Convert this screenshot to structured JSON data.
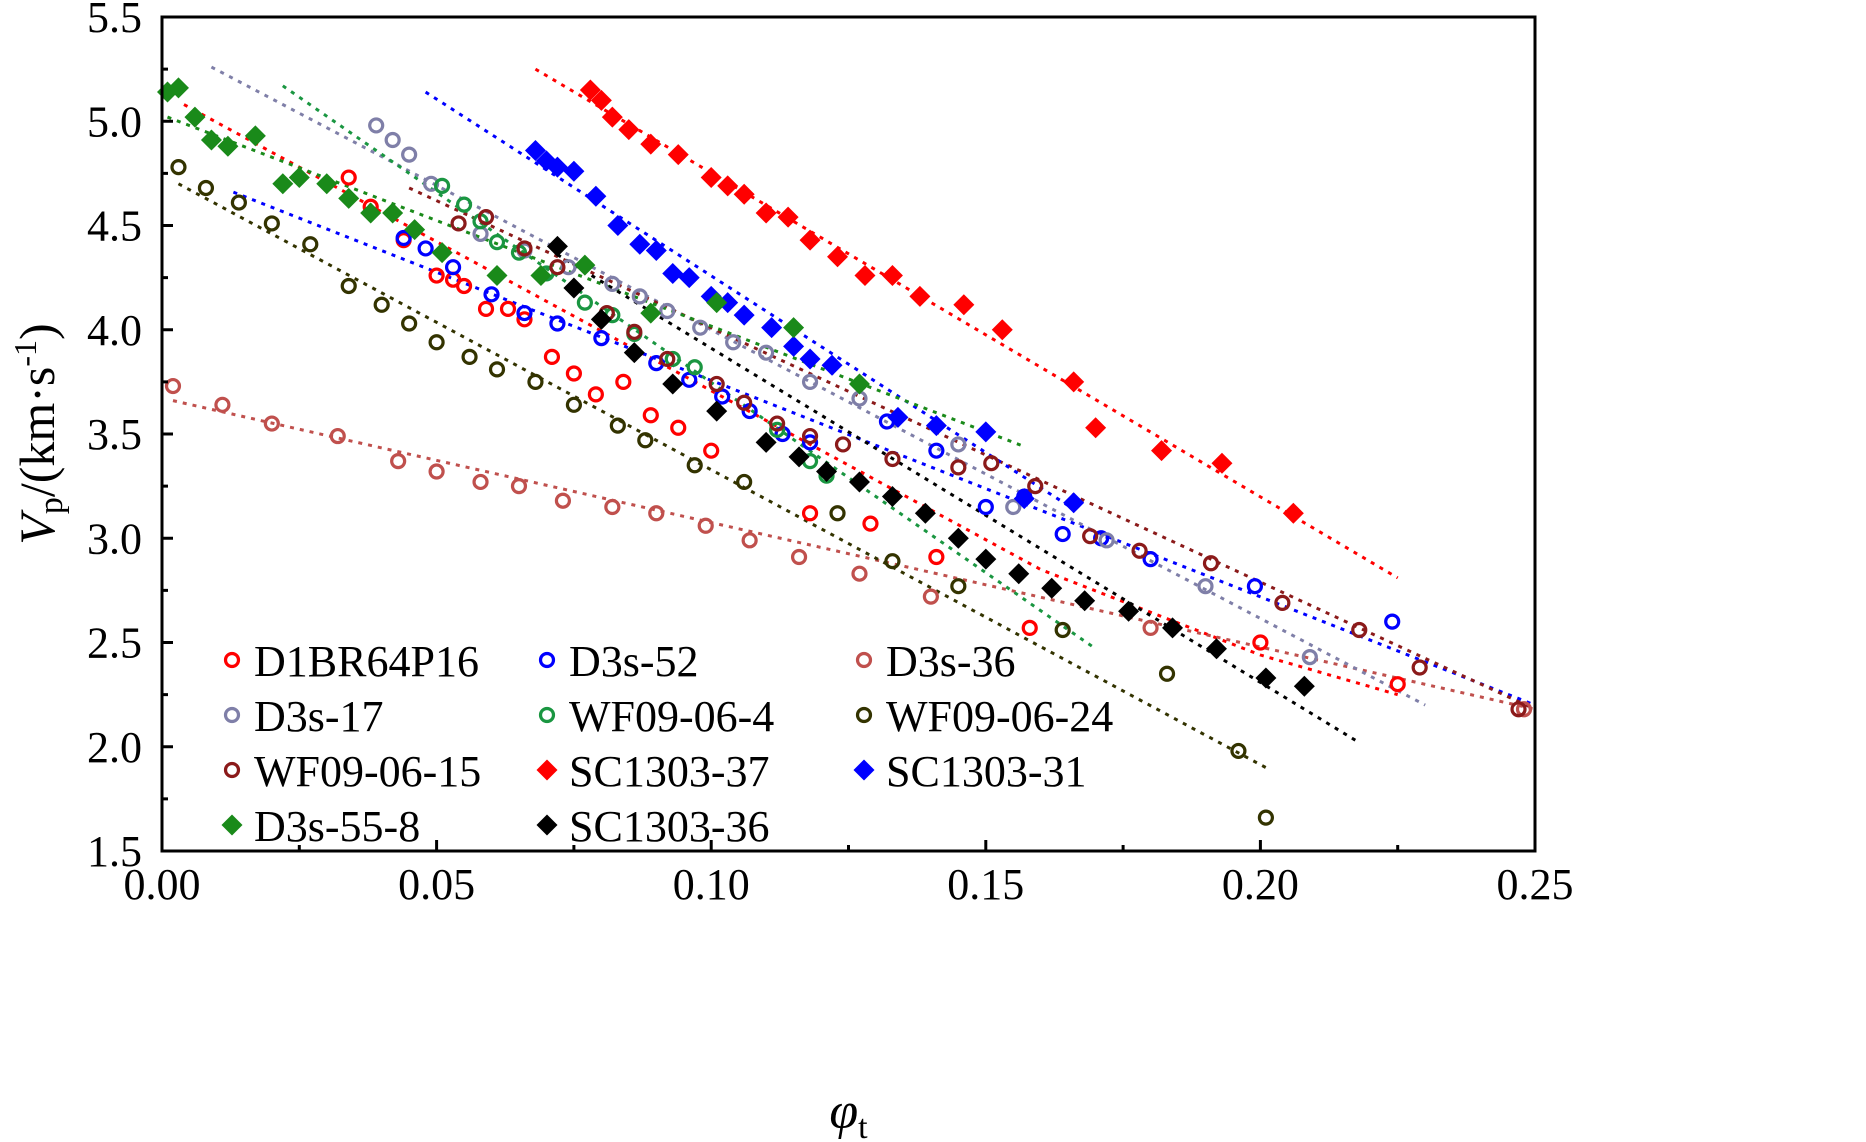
{
  "chart_data": {
    "type": "scatter",
    "title": "",
    "xlabel": {
      "main": "φ",
      "sub": "t"
    },
    "ylabel": {
      "main": "V",
      "sub": "p",
      "rest": "/(km·s",
      "sup": "-1",
      "close": ")"
    },
    "xlim": [
      0.0,
      0.25
    ],
    "ylim": [
      1.5,
      5.5
    ],
    "xticks": [
      0.0,
      0.05,
      0.1,
      0.15,
      0.2,
      0.25
    ],
    "xtick_labels": [
      "0.00",
      "0.05",
      "0.10",
      "0.15",
      "0.20",
      "0.25"
    ],
    "yticks": [
      1.5,
      2.0,
      2.5,
      3.0,
      3.5,
      4.0,
      4.5,
      5.0,
      5.5
    ],
    "ytick_labels": [
      "1.5",
      "2.0",
      "2.5",
      "3.0",
      "3.5",
      "4.0",
      "4.5",
      "5.0",
      "5.5"
    ],
    "grid": false,
    "legend_position": "bottom-left",
    "series": [
      {
        "name": "D1BR64P16",
        "color": "#ff0000",
        "marker": "circle-open",
        "x": [
          0.034,
          0.038,
          0.044,
          0.05,
          0.053,
          0.055,
          0.059,
          0.063,
          0.066,
          0.071,
          0.075,
          0.079,
          0.084,
          0.089,
          0.094,
          0.1,
          0.118,
          0.129,
          0.141,
          0.158,
          0.2,
          0.225
        ],
        "y": [
          4.73,
          4.59,
          4.43,
          4.26,
          4.24,
          4.21,
          4.1,
          4.1,
          4.05,
          3.87,
          3.79,
          3.69,
          3.75,
          3.59,
          3.53,
          3.42,
          3.12,
          3.07,
          2.91,
          2.57,
          2.5,
          2.3
        ],
        "fit": [
          [
            0.004,
            5.08
          ],
          [
            0.16,
            2.85
          ],
          [
            0.2,
            2.44
          ],
          [
            0.225,
            2.25
          ]
        ]
      },
      {
        "name": "D3s-52",
        "color": "#0000ff",
        "marker": "circle-open",
        "x": [
          0.044,
          0.048,
          0.053,
          0.06,
          0.066,
          0.072,
          0.08,
          0.09,
          0.096,
          0.102,
          0.107,
          0.113,
          0.118,
          0.132,
          0.141,
          0.15,
          0.157,
          0.164,
          0.171,
          0.18,
          0.199,
          0.224
        ],
        "y": [
          4.44,
          4.39,
          4.3,
          4.17,
          4.08,
          4.03,
          3.96,
          3.84,
          3.76,
          3.68,
          3.61,
          3.5,
          3.46,
          3.56,
          3.42,
          3.15,
          3.2,
          3.02,
          3.0,
          2.9,
          2.77,
          2.6
        ],
        "fit": [
          [
            0.013,
            4.66
          ],
          [
            0.25,
            2.2
          ]
        ]
      },
      {
        "name": "D3s-36",
        "color": "#c0504d",
        "marker": "circle-open",
        "x": [
          0.002,
          0.011,
          0.02,
          0.032,
          0.043,
          0.05,
          0.058,
          0.065,
          0.073,
          0.082,
          0.09,
          0.099,
          0.107,
          0.116,
          0.127,
          0.14,
          0.18,
          0.248
        ],
        "y": [
          3.73,
          3.64,
          3.55,
          3.49,
          3.37,
          3.32,
          3.27,
          3.25,
          3.18,
          3.15,
          3.12,
          3.06,
          2.99,
          2.91,
          2.83,
          2.72,
          2.57,
          2.18
        ],
        "fit": [
          [
            0.002,
            3.66
          ],
          [
            0.25,
            2.18
          ]
        ]
      },
      {
        "name": "D3s-17",
        "color": "#7f7fa8",
        "marker": "circle-open",
        "x": [
          0.039,
          0.042,
          0.045,
          0.049,
          0.058,
          0.066,
          0.074,
          0.082,
          0.087,
          0.092,
          0.098,
          0.104,
          0.11,
          0.118,
          0.127,
          0.145,
          0.155,
          0.172,
          0.19,
          0.209
        ],
        "y": [
          4.98,
          4.91,
          4.84,
          4.7,
          4.46,
          4.38,
          4.3,
          4.22,
          4.16,
          4.09,
          4.01,
          3.94,
          3.89,
          3.75,
          3.67,
          3.45,
          3.15,
          2.99,
          2.77,
          2.43
        ],
        "fit": [
          [
            0.009,
            5.26
          ],
          [
            0.23,
            2.2
          ]
        ]
      },
      {
        "name": "WF09-06-4",
        "color": "#1a9641",
        "marker": "circle-open",
        "x": [
          0.051,
          0.055,
          0.058,
          0.061,
          0.065,
          0.07,
          0.077,
          0.082,
          0.086,
          0.093,
          0.097,
          0.112,
          0.118,
          0.121
        ],
        "y": [
          4.69,
          4.6,
          4.52,
          4.42,
          4.37,
          4.27,
          4.13,
          4.07,
          3.98,
          3.86,
          3.82,
          3.52,
          3.37,
          3.3
        ],
        "fit": [
          [
            0.022,
            5.17
          ],
          [
            0.17,
            2.47
          ]
        ]
      },
      {
        "name": "WF09-06-24",
        "color": "#333300",
        "marker": "circle-open",
        "x": [
          0.003,
          0.008,
          0.014,
          0.02,
          0.027,
          0.034,
          0.04,
          0.045,
          0.05,
          0.056,
          0.061,
          0.068,
          0.075,
          0.083,
          0.088,
          0.097,
          0.106,
          0.123,
          0.133,
          0.145,
          0.164,
          0.183,
          0.196,
          0.201
        ],
        "y": [
          4.78,
          4.68,
          4.61,
          4.51,
          4.41,
          4.21,
          4.12,
          4.03,
          3.94,
          3.87,
          3.81,
          3.75,
          3.64,
          3.54,
          3.47,
          3.35,
          3.27,
          3.12,
          2.89,
          2.77,
          2.56,
          2.35,
          1.98,
          1.66
        ],
        "fit": [
          [
            0.003,
            4.7
          ],
          [
            0.201,
            1.9
          ]
        ]
      },
      {
        "name": "WF09-06-15",
        "color": "#8b1a1a",
        "marker": "circle-open",
        "x": [
          0.054,
          0.059,
          0.066,
          0.072,
          0.081,
          0.086,
          0.092,
          0.101,
          0.106,
          0.112,
          0.118,
          0.124,
          0.133,
          0.145,
          0.151,
          0.159,
          0.169,
          0.178,
          0.191,
          0.204,
          0.218,
          0.229,
          0.247
        ],
        "y": [
          4.51,
          4.54,
          4.39,
          4.3,
          4.08,
          3.99,
          3.86,
          3.74,
          3.65,
          3.55,
          3.49,
          3.45,
          3.38,
          3.34,
          3.36,
          3.25,
          3.01,
          2.94,
          2.88,
          2.69,
          2.56,
          2.38,
          2.18
        ],
        "fit": [
          [
            0.045,
            4.68
          ],
          [
            0.25,
            2.18
          ]
        ]
      },
      {
        "name": "SC1303-37",
        "color": "#ff0000",
        "marker": "diamond-filled",
        "x": [
          0.078,
          0.08,
          0.082,
          0.085,
          0.089,
          0.094,
          0.1,
          0.103,
          0.106,
          0.11,
          0.114,
          0.118,
          0.123,
          0.128,
          0.133,
          0.138,
          0.146,
          0.153,
          0.166,
          0.17,
          0.182,
          0.193,
          0.206
        ],
        "y": [
          5.15,
          5.1,
          5.02,
          4.96,
          4.89,
          4.84,
          4.73,
          4.69,
          4.65,
          4.56,
          4.54,
          4.43,
          4.35,
          4.26,
          4.26,
          4.16,
          4.12,
          4.0,
          3.75,
          3.53,
          3.42,
          3.36,
          3.12
        ],
        "fit": [
          [
            0.068,
            5.25
          ],
          [
            0.225,
            2.81
          ]
        ]
      },
      {
        "name": "SC1303-31",
        "color": "#0000ff",
        "marker": "diamond-filled",
        "x": [
          0.068,
          0.07,
          0.072,
          0.075,
          0.079,
          0.083,
          0.087,
          0.09,
          0.093,
          0.096,
          0.1,
          0.103,
          0.106,
          0.111,
          0.115,
          0.118,
          0.122,
          0.134,
          0.141,
          0.15,
          0.157,
          0.166
        ],
        "y": [
          4.86,
          4.81,
          4.78,
          4.76,
          4.64,
          4.5,
          4.41,
          4.38,
          4.27,
          4.25,
          4.16,
          4.13,
          4.07,
          4.01,
          3.92,
          3.86,
          3.83,
          3.58,
          3.54,
          3.51,
          3.19,
          3.17
        ],
        "fit": [
          [
            0.048,
            5.14
          ],
          [
            0.166,
            3.14
          ]
        ]
      },
      {
        "name": "D3s-55-8",
        "color": "#1a8a1a",
        "marker": "diamond-filled",
        "x": [
          0.001,
          0.003,
          0.006,
          0.009,
          0.012,
          0.017,
          0.022,
          0.025,
          0.03,
          0.034,
          0.038,
          0.042,
          0.046,
          0.051,
          0.061,
          0.069,
          0.077,
          0.089,
          0.101,
          0.115,
          0.127
        ],
        "y": [
          5.14,
          5.16,
          5.02,
          4.91,
          4.88,
          4.93,
          4.7,
          4.73,
          4.7,
          4.63,
          4.56,
          4.56,
          4.48,
          4.37,
          4.26,
          4.26,
          4.31,
          4.08,
          4.13,
          4.01,
          3.74
        ],
        "fit": [
          [
            0.001,
            5.02
          ],
          [
            0.157,
            3.44
          ]
        ]
      },
      {
        "name": "SC1303-36",
        "color": "#000000",
        "marker": "diamond-filled",
        "x": [
          0.072,
          0.075,
          0.08,
          0.086,
          0.093,
          0.101,
          0.11,
          0.116,
          0.121,
          0.127,
          0.133,
          0.139,
          0.145,
          0.15,
          0.156,
          0.162,
          0.168,
          0.176,
          0.184,
          0.192,
          0.201,
          0.208
        ],
        "y": [
          4.4,
          4.2,
          4.05,
          3.89,
          3.74,
          3.61,
          3.46,
          3.39,
          3.32,
          3.27,
          3.2,
          3.12,
          3.0,
          2.9,
          2.83,
          2.76,
          2.7,
          2.65,
          2.57,
          2.47,
          2.33,
          2.29
        ],
        "fit": [
          [
            0.072,
            4.36
          ],
          [
            0.218,
            2.02
          ]
        ]
      }
    ]
  }
}
